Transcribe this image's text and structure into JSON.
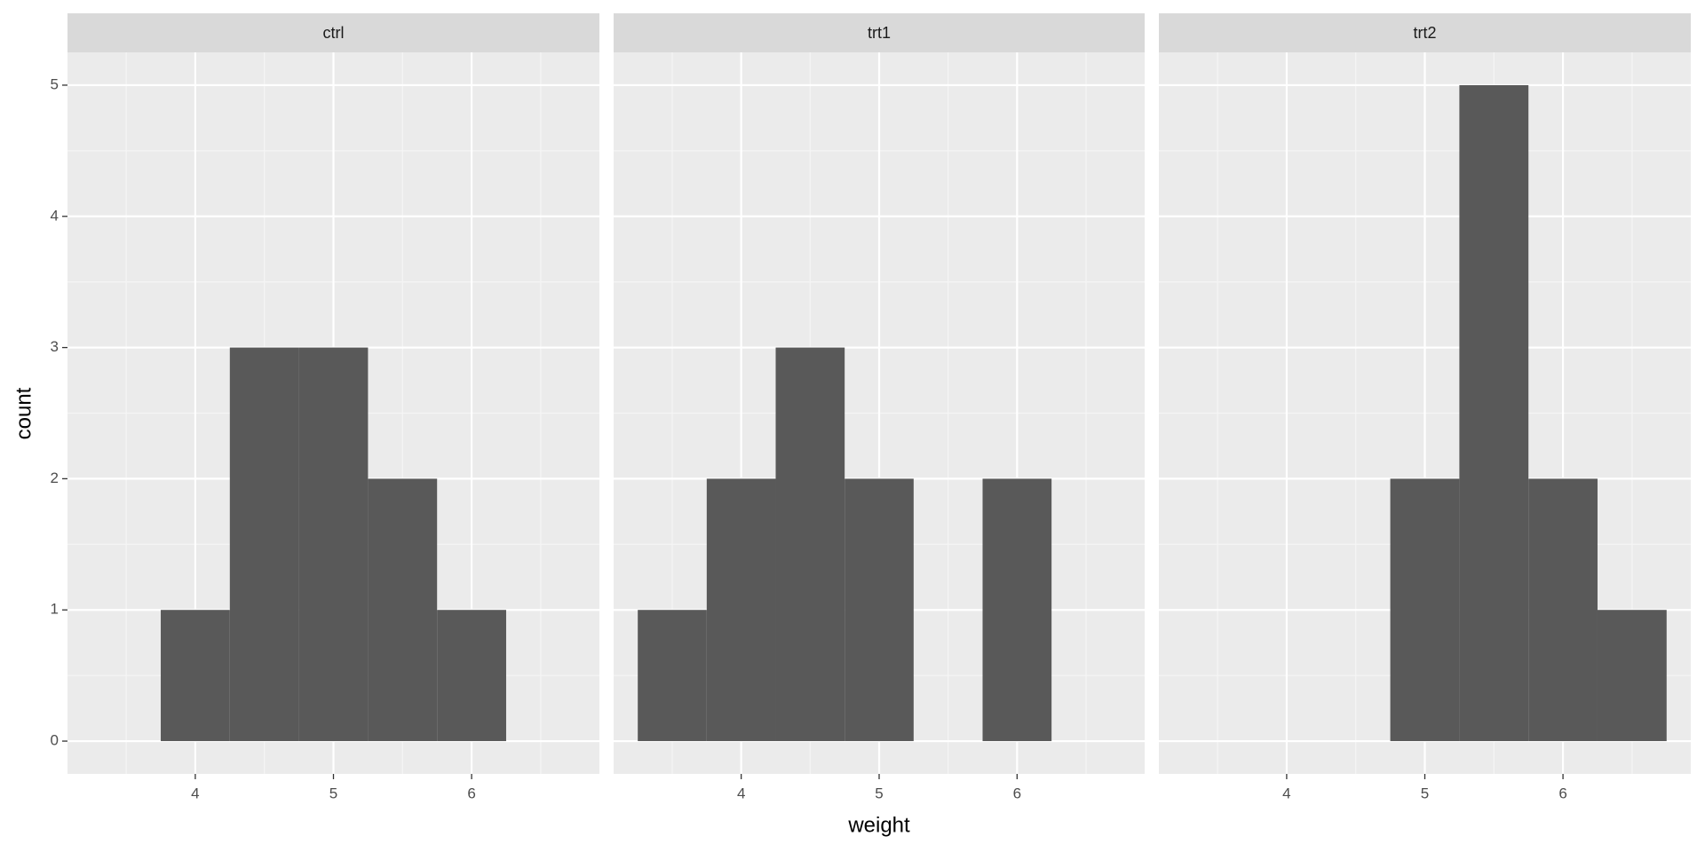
{
  "chart_data": {
    "type": "histogram",
    "x_label": "weight",
    "y_label": "count",
    "bins": [
      3.25,
      3.75,
      4.25,
      4.75,
      5.25,
      5.75,
      6.25,
      6.75
    ],
    "facets": [
      {
        "name": "ctrl",
        "values": [
          0,
          1,
          3,
          3,
          2,
          1,
          0
        ]
      },
      {
        "name": "trt1",
        "values": [
          1,
          2,
          3,
          2,
          0,
          2,
          0
        ]
      },
      {
        "name": "trt2",
        "values": [
          0,
          0,
          0,
          2,
          5,
          2,
          1
        ]
      }
    ],
    "color": "#595959",
    "xlim": [
      3.075,
      6.925
    ],
    "xticks": [
      4,
      5,
      6
    ],
    "x_minor_breaks": [
      3.5,
      4.5,
      5.5,
      6.5
    ],
    "ylim": [
      -0.25,
      5.25
    ],
    "yticks": [
      0,
      1,
      2,
      3,
      4,
      5
    ],
    "y_minor_breaks": [
      0.5,
      1.5,
      2.5,
      3.5,
      4.5
    ],
    "grid": true
  }
}
